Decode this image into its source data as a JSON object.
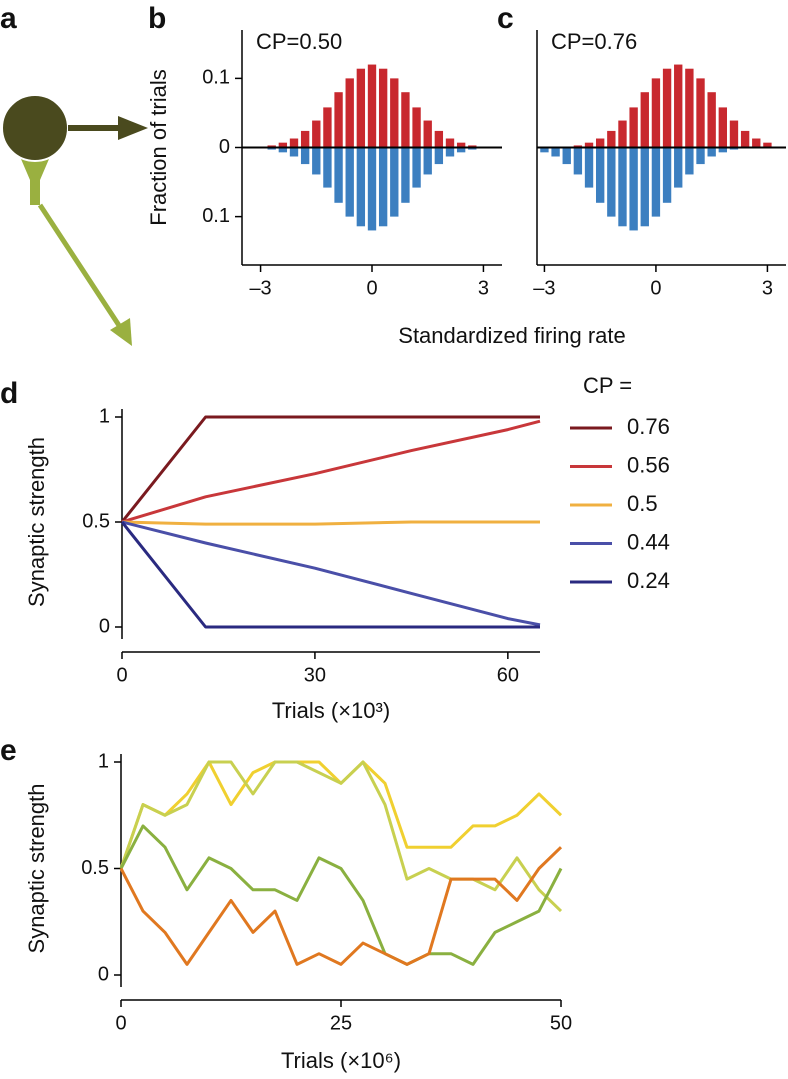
{
  "diagram": {
    "label": "a"
  },
  "chart_data": [
    {
      "type": "bar",
      "label": "b",
      "annotation": "CP=0.50",
      "ylabel": "Fraction of trials",
      "xlabel": "Standardized firing rate",
      "x": [
        -3,
        -2.7,
        -2.4,
        -2.1,
        -1.8,
        -1.5,
        -1.2,
        -0.9,
        -0.6,
        -0.3,
        0,
        0.3,
        0.6,
        0.9,
        1.2,
        1.5,
        1.8,
        2.1,
        2.4,
        2.7,
        3
      ],
      "series": [
        {
          "color": "#c8282e",
          "values": [
            0.001,
            0.003,
            0.007,
            0.013,
            0.024,
            0.039,
            0.058,
            0.08,
            0.1,
            0.114,
            0.12,
            0.114,
            0.1,
            0.08,
            0.058,
            0.039,
            0.024,
            0.013,
            0.007,
            0.003,
            0.001
          ]
        },
        {
          "color": "#3c7fc0",
          "values": [
            -0.001,
            -0.003,
            -0.007,
            -0.013,
            -0.024,
            -0.039,
            -0.058,
            -0.08,
            -0.1,
            -0.114,
            -0.12,
            -0.114,
            -0.1,
            -0.08,
            -0.058,
            -0.039,
            -0.024,
            -0.013,
            -0.007,
            -0.003,
            -0.001
          ]
        }
      ],
      "xlim": [
        -3.5,
        3.5
      ],
      "ylim": [
        -0.17,
        0.17
      ],
      "xticks": [
        {
          "value": -3,
          "label": "–3"
        },
        0,
        3
      ],
      "yticks": [
        {
          "value": -0.1,
          "label": "0.1"
        },
        0,
        0.1
      ]
    },
    {
      "type": "bar",
      "label": "c",
      "annotation": "CP=0.76",
      "x": [
        -3,
        -2.7,
        -2.4,
        -2.1,
        -1.8,
        -1.5,
        -1.2,
        -0.9,
        -0.6,
        -0.3,
        0,
        0.3,
        0.6,
        0.9,
        1.2,
        1.5,
        1.8,
        2.1,
        2.4,
        2.7,
        3
      ],
      "series": [
        {
          "color": "#c8282e",
          "values": [
            0,
            0.0005,
            0.001,
            0.003,
            0.007,
            0.013,
            0.024,
            0.039,
            0.058,
            0.08,
            0.1,
            0.114,
            0.12,
            0.114,
            0.1,
            0.08,
            0.058,
            0.039,
            0.024,
            0.013,
            0.007
          ]
        },
        {
          "color": "#3c7fc0",
          "values": [
            -0.007,
            -0.013,
            -0.024,
            -0.039,
            -0.058,
            -0.08,
            -0.1,
            -0.114,
            -0.12,
            -0.114,
            -0.1,
            -0.08,
            -0.058,
            -0.039,
            -0.024,
            -0.013,
            -0.007,
            -0.003,
            -0.001,
            -0.0005,
            0
          ]
        }
      ],
      "xlim": [
        -3.2,
        3.5
      ],
      "ylim": [
        -0.17,
        0.17
      ],
      "xticks": [
        {
          "value": -3,
          "label": "–3"
        },
        0,
        3
      ]
    },
    {
      "type": "line",
      "label": "d",
      "ylabel": "Synaptic strength",
      "xlabel": "Trials (×10³)",
      "legend_title": "CP =",
      "x": [
        0,
        13,
        30,
        45,
        60,
        65
      ],
      "series": [
        {
          "name": "0.76",
          "color": "#7a1a1f",
          "values": [
            0.5,
            1,
            1,
            1,
            1,
            1
          ]
        },
        {
          "name": "0.56",
          "color": "#c8373a",
          "values": [
            0.5,
            0.62,
            0.73,
            0.84,
            0.94,
            0.98
          ]
        },
        {
          "name": "0.5",
          "color": "#f0b040",
          "values": [
            0.5,
            0.49,
            0.49,
            0.5,
            0.5,
            0.5
          ]
        },
        {
          "name": "0.44",
          "color": "#4a4fa8",
          "values": [
            0.5,
            0.4,
            0.28,
            0.16,
            0.04,
            0.01
          ]
        },
        {
          "name": "0.24",
          "color": "#2a2a80",
          "values": [
            0.5,
            0,
            0,
            0,
            0,
            0
          ]
        }
      ],
      "xlim": [
        0,
        65
      ],
      "ylim": [
        0,
        1
      ],
      "xticks": [
        0,
        30,
        60
      ],
      "yticks": [
        0,
        0.5,
        1
      ]
    },
    {
      "type": "line",
      "label": "e",
      "ylabel": "Synaptic strength",
      "xlabel": "Trials (×10⁶)",
      "x": [
        0,
        2.5,
        5,
        7.5,
        10,
        12.5,
        15,
        17.5,
        20,
        22.5,
        25,
        27.5,
        30,
        32.5,
        35,
        37.5,
        40,
        42.5,
        45,
        47.5,
        50
      ],
      "series": [
        {
          "color": "#f0d030",
          "values": [
            0.5,
            0.8,
            0.75,
            0.85,
            1,
            0.8,
            0.95,
            1,
            1,
            1,
            0.9,
            1,
            0.9,
            0.6,
            0.6,
            0.6,
            0.7,
            0.7,
            0.75,
            0.85,
            0.75
          ]
        },
        {
          "color": "#c8d050",
          "values": [
            0.5,
            0.8,
            0.75,
            0.8,
            1,
            1,
            0.85,
            1,
            1,
            0.95,
            0.9,
            1,
            0.8,
            0.45,
            0.5,
            0.45,
            0.45,
            0.4,
            0.55,
            0.4,
            0.3
          ]
        },
        {
          "color": "#8ab040",
          "values": [
            0.5,
            0.7,
            0.6,
            0.4,
            0.55,
            0.5,
            0.4,
            0.4,
            0.35,
            0.55,
            0.5,
            0.35,
            0.1,
            0.05,
            0.1,
            0.1,
            0.05,
            0.2,
            0.25,
            0.3,
            0.5
          ]
        },
        {
          "color": "#e07820",
          "values": [
            0.5,
            0.3,
            0.2,
            0.05,
            0.2,
            0.35,
            0.2,
            0.3,
            0.05,
            0.1,
            0.05,
            0.15,
            0.1,
            0.05,
            0.1,
            0.45,
            0.45,
            0.45,
            0.35,
            0.5,
            0.6
          ]
        }
      ],
      "xlim": [
        0,
        50
      ],
      "ylim": [
        0,
        1
      ],
      "xticks": [
        0,
        25,
        50
      ],
      "yticks": [
        0,
        0.5,
        1
      ]
    }
  ]
}
